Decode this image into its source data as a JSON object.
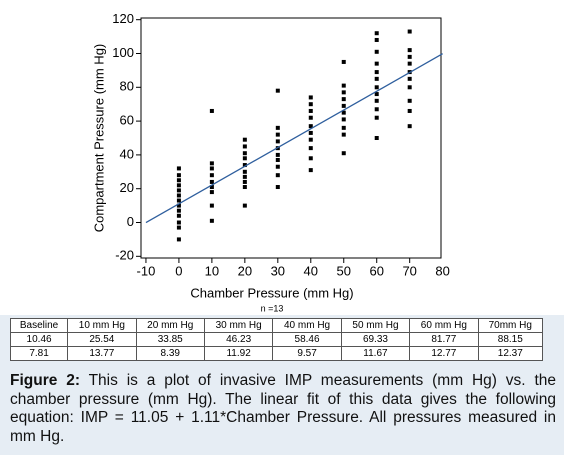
{
  "chart_data": {
    "type": "scatter",
    "x_label": "Chamber Pressure (mm Hg)",
    "y_label": "Compartment Pressure (mm Hg)",
    "annotation": "n =13",
    "xlim": [
      -11.5,
      79.5
    ],
    "xticks": [
      -10,
      0,
      10,
      20,
      30,
      40,
      50,
      60,
      70,
      80
    ],
    "ylim": [
      -21,
      121
    ],
    "yticks": [
      -20,
      0,
      20,
      40,
      60,
      80,
      100,
      120
    ],
    "grid": false,
    "series": [
      {
        "type": "scatter",
        "color": "#000000",
        "x": [
          0,
          0,
          0,
          0,
          0,
          0,
          0,
          0,
          0,
          0,
          0,
          0,
          0,
          10,
          10,
          10,
          10,
          10,
          10,
          10,
          10,
          10,
          20,
          20,
          20,
          20,
          20,
          20,
          20,
          20,
          20,
          20,
          30,
          30,
          30,
          30,
          30,
          30,
          30,
          30,
          30,
          30,
          40,
          40,
          40,
          40,
          40,
          40,
          40,
          40,
          40,
          40,
          50,
          50,
          50,
          50,
          50,
          50,
          50,
          50,
          50,
          50,
          60,
          60,
          60,
          60,
          60,
          60,
          60,
          60,
          60,
          60,
          60,
          60,
          70,
          70,
          70,
          70,
          70,
          70,
          70,
          70,
          70,
          70
        ],
        "values": [
          32,
          28,
          25,
          22,
          19,
          16,
          13,
          10,
          7,
          4,
          0,
          -3,
          -10,
          66,
          35,
          32,
          28,
          24,
          21,
          18,
          10,
          1,
          49,
          45,
          41,
          38,
          34,
          30,
          27,
          24,
          21,
          10,
          78,
          56,
          52,
          48,
          44,
          40,
          37,
          33,
          28,
          21,
          74,
          70,
          66,
          62,
          57,
          53,
          49,
          44,
          38,
          31,
          95,
          81,
          77,
          73,
          69,
          65,
          61,
          56,
          52,
          41,
          112,
          108,
          101,
          94,
          89,
          85,
          80,
          76,
          72,
          67,
          62,
          50,
          113,
          102,
          98,
          94,
          89,
          85,
          80,
          72,
          66,
          57
        ]
      },
      {
        "type": "line",
        "color": "#2f5f9e",
        "x": [
          -10,
          80
        ],
        "values": [
          -0.05,
          99.85
        ]
      }
    ]
  },
  "table": {
    "header": [
      "Baseline",
      "10 mm Hg",
      "20 mm Hg",
      "30 mm Hg",
      "40 mm Hg",
      "50 mm Hg",
      "60 mm Hg",
      "70mm Hg"
    ],
    "rows": [
      [
        10.46,
        25.54,
        33.85,
        46.23,
        58.46,
        69.33,
        81.77,
        88.15
      ],
      [
        7.81,
        13.77,
        8.39,
        11.92,
        9.57,
        11.67,
        12.77,
        12.37
      ]
    ]
  },
  "caption": {
    "label": "Figure 2:",
    "text": "This is a plot of invasive IMP measurements (mm Hg) vs. the chamber pressure (mm Hg). The linear fit of this data gives the following equation: IMP = 11.05 + 1.11*Chamber Pressure. All pressures measured in mm Hg."
  }
}
